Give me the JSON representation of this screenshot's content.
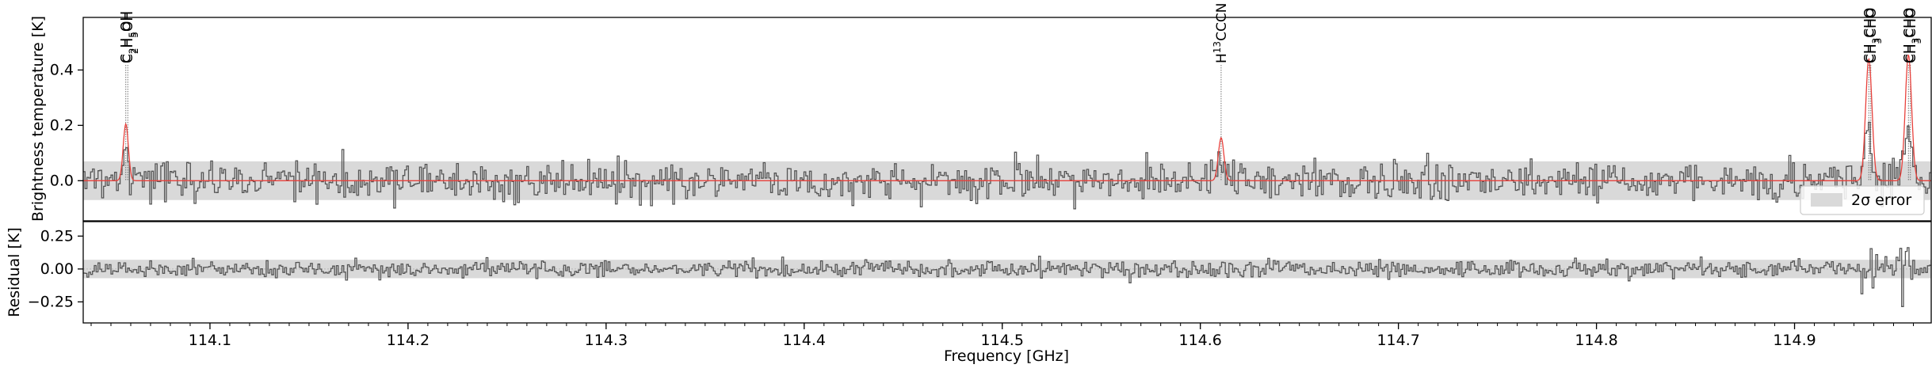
{
  "chart_data": {
    "type": "line",
    "xlabel": "Frequency [GHz]",
    "x_ticks": [
      114.1,
      114.2,
      114.3,
      114.4,
      114.5,
      114.6,
      114.7,
      114.8,
      114.9
    ],
    "x_tick_labels": [
      "114.1",
      "114.2",
      "114.3",
      "114.4",
      "114.5",
      "114.6",
      "114.7",
      "114.8",
      "114.9"
    ],
    "xlim": [
      114.036,
      114.969
    ],
    "panels": [
      {
        "name": "spectrum",
        "ylabel": "Brightness temperature [K]",
        "ylim": [
          -0.145,
          0.59
        ],
        "y_ticks": [
          0.0,
          0.2,
          0.4
        ],
        "y_tick_labels": [
          "0.0",
          "0.2",
          "0.4"
        ],
        "error_band": [
          -0.07,
          0.07
        ],
        "legend": {
          "label": "2σ error",
          "placement": "lower right"
        },
        "series": [
          {
            "kind": "observed-step",
            "color": "#555555",
            "noise_sigma": 0.035
          },
          {
            "kind": "model",
            "color": "#e8413c"
          }
        ],
        "lines": [
          {
            "label": "C2H5OH",
            "x": 114.0575,
            "peak": 0.205,
            "width": 0.0013
          },
          {
            "label": "C2H5OH",
            "x": 114.0585,
            "peak": 0.0,
            "width": 0.0013
          },
          {
            "label": "H13CCCN",
            "x": 114.6105,
            "peak": 0.155,
            "width": 0.0014
          },
          {
            "label": "CH3CHO",
            "x": 114.9375,
            "peak": 0.44,
            "width": 0.0016
          },
          {
            "label": "CH3CHO",
            "x": 114.9385,
            "peak": 0.0,
            "width": 0.0016
          },
          {
            "label": "CH3CHO",
            "x": 114.9575,
            "peak": 0.455,
            "width": 0.0016
          },
          {
            "label": "CH3CHO",
            "x": 114.9585,
            "peak": 0.0,
            "width": 0.0016
          }
        ]
      },
      {
        "name": "residual",
        "ylabel": "Residual [K]",
        "ylim": [
          -0.41,
          0.36
        ],
        "y_ticks": [
          0.25,
          0.0,
          -0.25
        ],
        "y_tick_labels": [
          "0.25",
          "0.00",
          "−0.25"
        ],
        "error_band": [
          -0.07,
          0.07
        ],
        "series": [
          {
            "kind": "residual-step",
            "color": "#555555",
            "noise_sigma": 0.032
          }
        ]
      }
    ]
  },
  "labels": {
    "line_ids": [
      {
        "base": "C",
        "sub": "2",
        "rest": "H",
        "sub2": "5",
        "tail": "OH"
      },
      {
        "base": "C",
        "sub": "2",
        "rest": "H",
        "sub2": "5",
        "tail": "OH"
      },
      {
        "base": "H",
        "sup": "13",
        "tail": "CCCN"
      },
      {
        "base": "CH",
        "sub": "3",
        "tail": "CHO"
      },
      {
        "base": "CH",
        "sub": "3",
        "tail": "CHO"
      },
      {
        "base": "CH",
        "sub": "3",
        "tail": "CHO"
      },
      {
        "base": "CH",
        "sub": "3",
        "tail": "CHO"
      }
    ]
  }
}
